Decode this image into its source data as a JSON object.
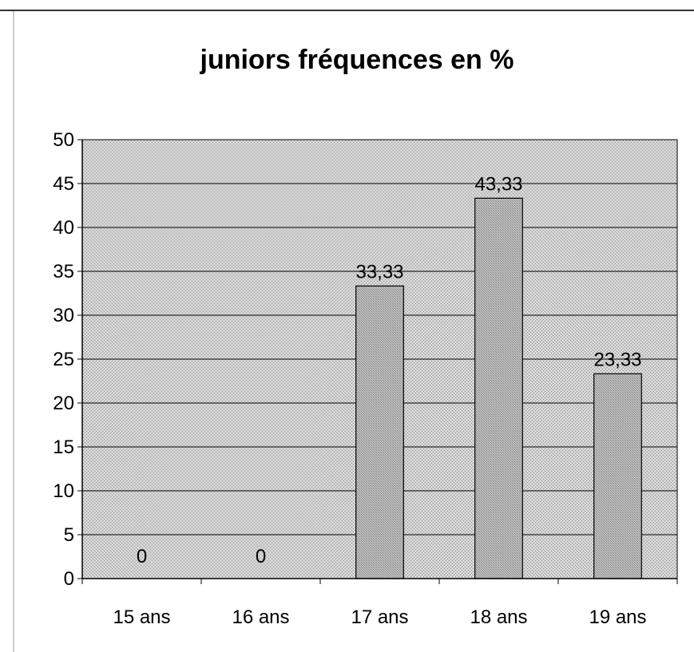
{
  "chart_data": {
    "type": "bar",
    "title": "juniors fréquences en %",
    "xlabel": "",
    "ylabel": "",
    "categories": [
      "15 ans",
      "16 ans",
      "17 ans",
      "18 ans",
      "19 ans"
    ],
    "values": [
      0,
      0,
      33.33,
      43.33,
      23.33
    ],
    "data_labels": [
      "0",
      "0",
      "33,33",
      "43,33",
      "23,33"
    ],
    "ylim": [
      0,
      50
    ],
    "yticks": [
      0,
      5,
      10,
      15,
      20,
      25,
      30,
      35,
      40,
      45,
      50
    ],
    "grid": true,
    "legend": "none",
    "colors": {
      "plot_background": "#c8c8c8",
      "bar_fill": "#b4b4b4",
      "bar_stroke": "#000000",
      "grid": "#000000"
    }
  }
}
